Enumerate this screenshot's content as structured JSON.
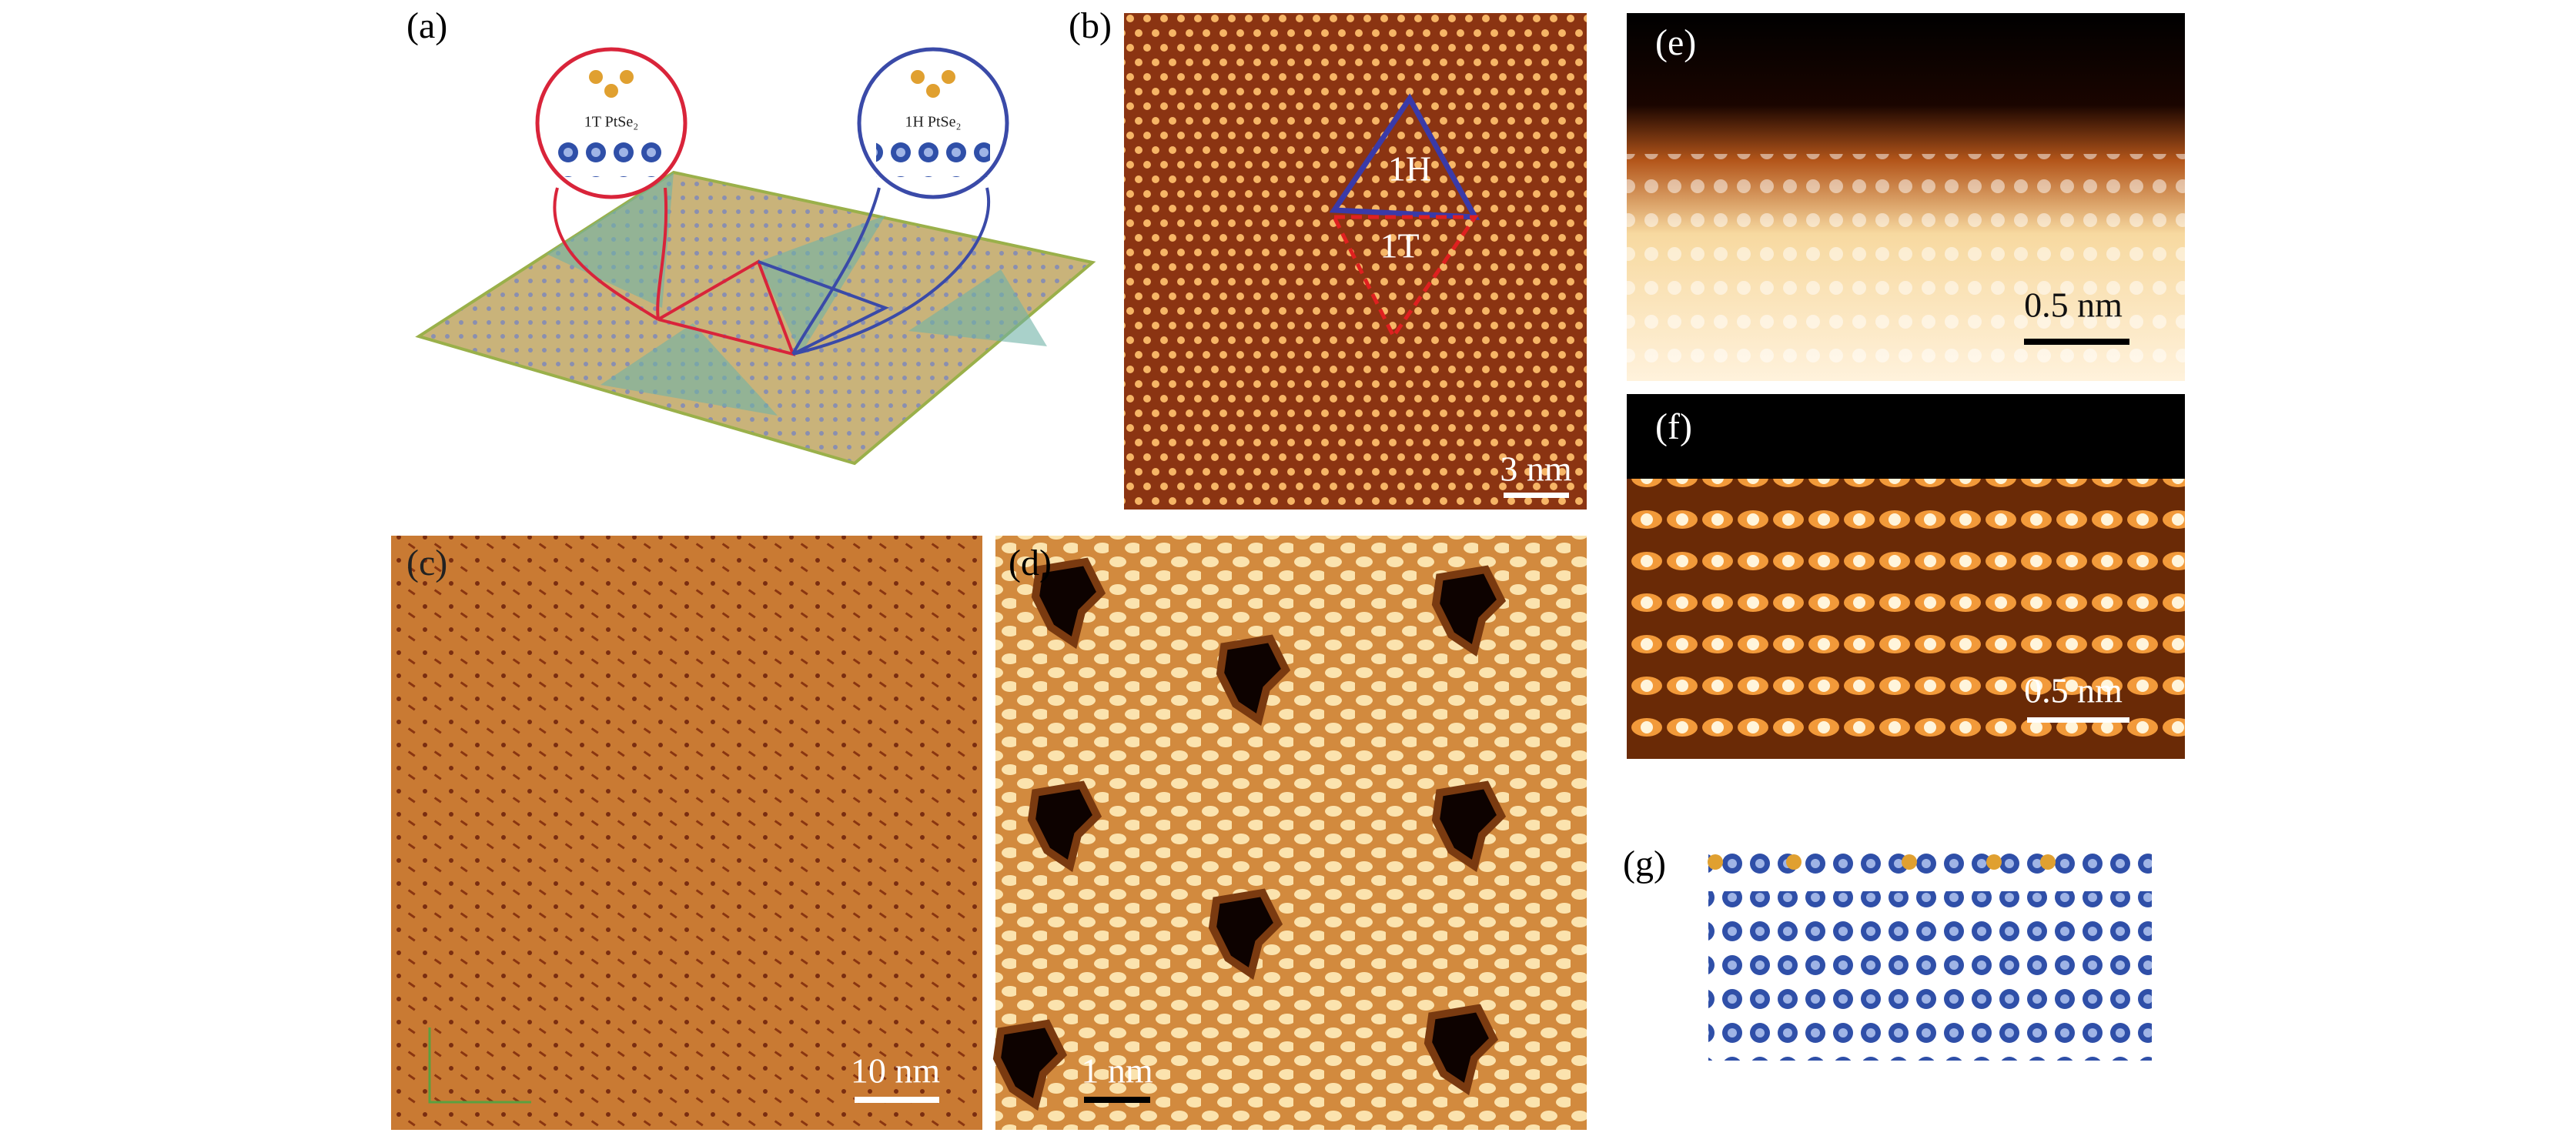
{
  "panels": {
    "a": {
      "label": "(a)",
      "inset_1t": "1T PtSe₂",
      "inset_1h": "1H PtSe₂"
    },
    "b": {
      "label": "(b)",
      "region_1h": "1H",
      "region_1t": "1T",
      "scale_bar": "3 nm"
    },
    "c": {
      "label": "(c)",
      "scale_bar": "10 nm"
    },
    "d": {
      "label": "(d)",
      "scale_bar": "1 nm"
    },
    "e": {
      "label": "(e)",
      "scale_bar": "0.5 nm"
    },
    "f": {
      "label": "(f)",
      "scale_bar": "0.5 nm"
    },
    "g": {
      "label": "(g)"
    }
  }
}
